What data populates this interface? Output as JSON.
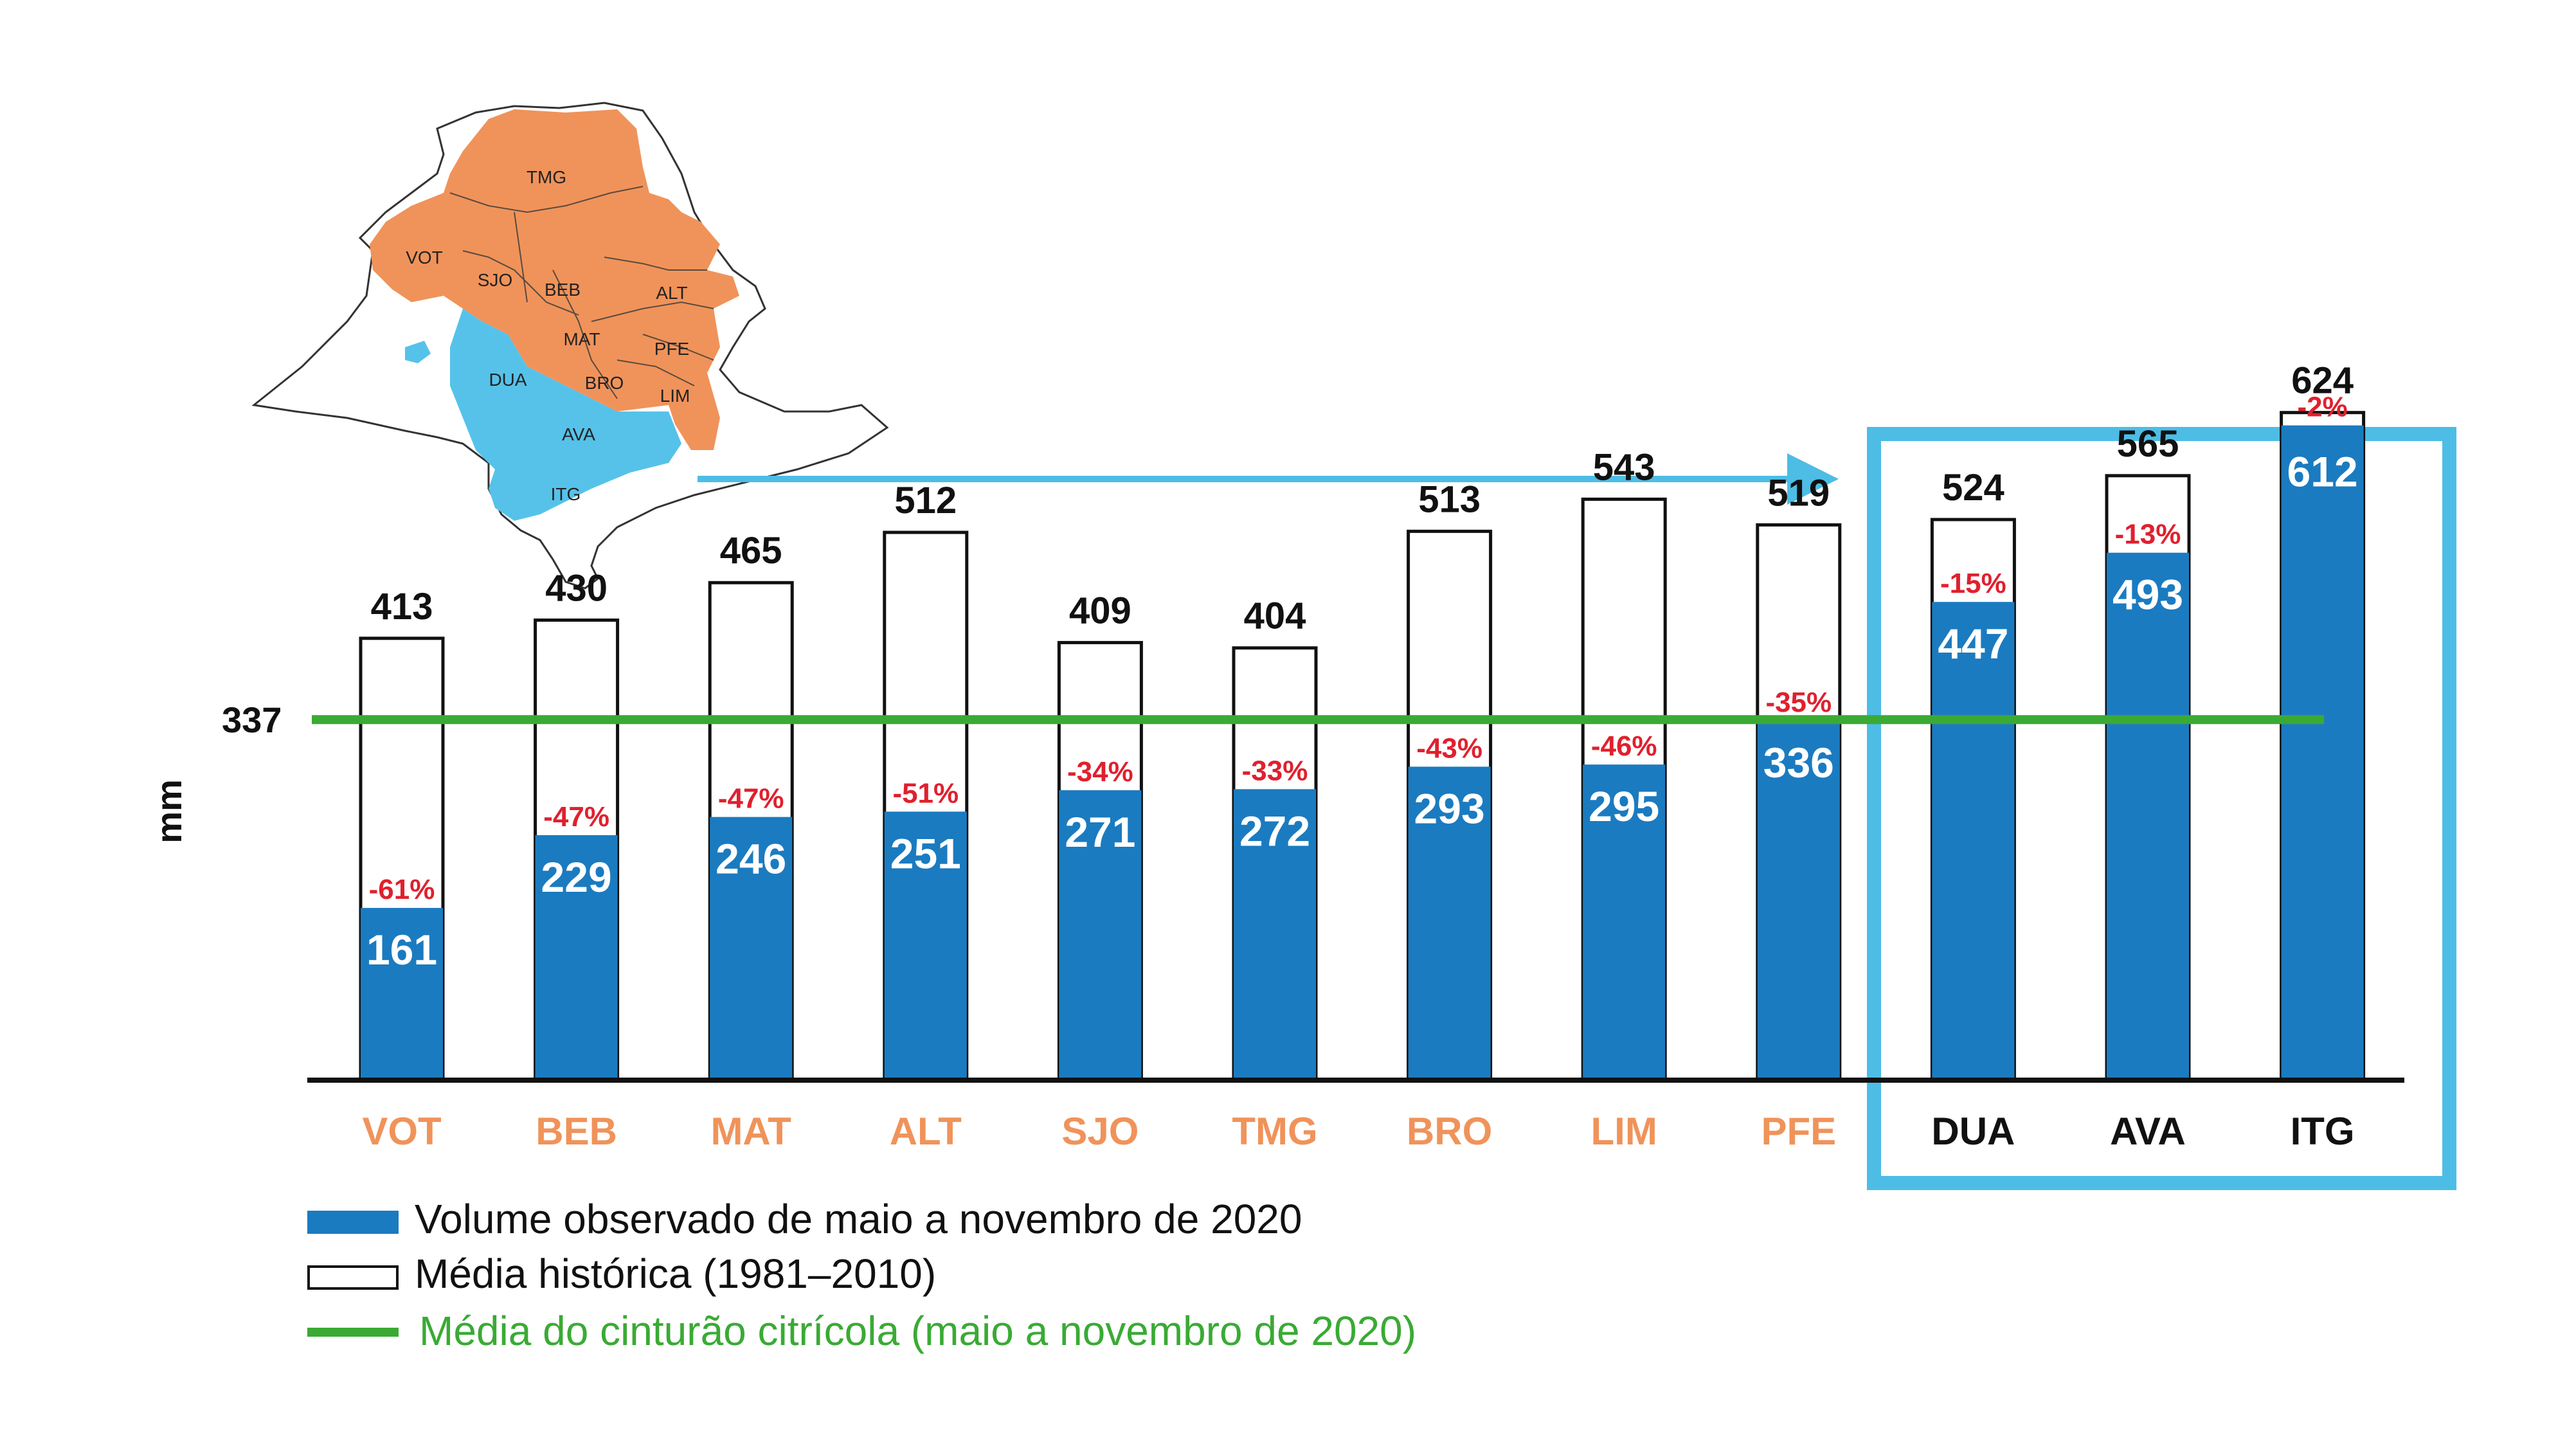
{
  "chart_data": {
    "type": "bar",
    "ylabel": "mm",
    "categories": [
      "VOT",
      "BEB",
      "MAT",
      "ALT",
      "SJO",
      "TMG",
      "BRO",
      "LIM",
      "PFE",
      "DUA",
      "AVA",
      "ITG"
    ],
    "series": [
      {
        "name": "Volume observado de maio a novembro de 2020",
        "values": [
          161,
          229,
          246,
          251,
          271,
          272,
          293,
          295,
          336,
          447,
          493,
          612
        ]
      },
      {
        "name": "Média histórica (1981–2010)",
        "values": [
          413,
          430,
          465,
          512,
          409,
          404,
          513,
          543,
          519,
          524,
          565,
          624
        ]
      }
    ],
    "deviations": [
      "-61%",
      "-47%",
      "-47%",
      "-51%",
      "-34%",
      "-33%",
      "-43%",
      "-46%",
      "-35%",
      "-15%",
      "-13%",
      "-2%"
    ],
    "reference_line": {
      "name": "Média do cinturão citrícola (maio a novembro de 2020)",
      "value": 337,
      "label": "337"
    },
    "highlighted_categories": [
      "DUA",
      "AVA",
      "ITG"
    ],
    "ylim": [
      0,
      650
    ],
    "grid": false,
    "legend_placement": "bottom-left"
  },
  "map": {
    "orange_regions": [
      "TMG",
      "VOT",
      "SJO",
      "BEB",
      "ALT",
      "MAT",
      "PFE",
      "BRO",
      "LIM"
    ],
    "blue_regions": [
      "DUA",
      "AVA",
      "ITG"
    ]
  },
  "colors": {
    "observed": "#1b7bc0",
    "reference": "#3aaa35",
    "highlight_box": "#4dbde6",
    "deviation": "#e0202e",
    "category_orange": "#f0935a",
    "category_dark": "#111111",
    "map_orange": "#f0935a",
    "map_blue": "#56c2e9"
  }
}
